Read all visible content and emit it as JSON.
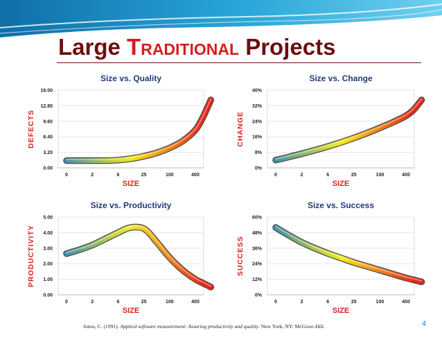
{
  "slide": {
    "title_prefix": "Large ",
    "title_emphasis": "Traditional",
    "title_suffix": " Projects",
    "citation_plain": "Jones, C. (1991). ",
    "citation_italic": "Applied software measurement: Assuring productivity and quality",
    "citation_rest": ". New York, NY: McGraw-Hill.",
    "page_number": "4"
  },
  "colors": {
    "title": "#6b0f0f",
    "title_emphasis": "#d41e1e",
    "chart_title": "#223a7a",
    "axis_label": "#d8231e",
    "curve_start": "#2e86b8",
    "curve_mid": "#f2ea18",
    "curve_end": "#e8261a"
  },
  "chart_data": [
    {
      "type": "line",
      "title": "Size vs. Quality",
      "xlabel": "SIZE",
      "ylabel": "DEFECTS",
      "x_ticks": [
        "0",
        "2",
        "6",
        "25",
        "100",
        "400"
      ],
      "y_ticks": [
        "0.00",
        "3.20",
        "6.40",
        "9.60",
        "12.80",
        "16.00"
      ],
      "ylim": [
        0,
        16
      ],
      "grid": true,
      "x": [
        0,
        0.5,
        1,
        1.5,
        2,
        2.5,
        3,
        3.5,
        4,
        4.5,
        5,
        5.3,
        5.6
      ],
      "y": [
        1.5,
        1.5,
        1.5,
        1.5,
        1.6,
        1.9,
        2.4,
        3.1,
        4.1,
        5.5,
        7.8,
        10.5,
        14.0
      ]
    },
    {
      "type": "line",
      "title": "Size vs. Change",
      "xlabel": "SIZE",
      "ylabel": "CHANGE",
      "x_ticks": [
        "0",
        "2",
        "6",
        "25",
        "100",
        "400"
      ],
      "y_ticks": [
        "0%",
        "8%",
        "16%",
        "24%",
        "32%",
        "40%"
      ],
      "ylim": [
        0,
        40
      ],
      "grid": true,
      "x": [
        0,
        0.5,
        1,
        1.5,
        2,
        2.5,
        3,
        3.5,
        4,
        4.5,
        5,
        5.3,
        5.6
      ],
      "y": [
        4,
        5.6,
        7.3,
        9.1,
        11,
        13.1,
        15.4,
        17.9,
        20.6,
        23.5,
        26.8,
        30,
        35
      ]
    },
    {
      "type": "line",
      "title": "Size vs. Productivity",
      "xlabel": "SIZE",
      "ylabel": "PRODUCTIVITY",
      "x_ticks": [
        "0",
        "2",
        "6",
        "25",
        "100",
        "400"
      ],
      "y_ticks": [
        "0.00",
        "1.00",
        "2.00",
        "3.00",
        "4.00",
        "5.00"
      ],
      "ylim": [
        0,
        5
      ],
      "grid": true,
      "x": [
        0,
        0.5,
        1,
        1.5,
        2,
        2.4,
        2.8,
        3.1,
        3.5,
        4,
        4.5,
        5,
        5.3,
        5.6
      ],
      "y": [
        2.65,
        2.9,
        3.2,
        3.6,
        4.0,
        4.3,
        4.35,
        4.15,
        3.4,
        2.4,
        1.6,
        1.0,
        0.75,
        0.5
      ]
    },
    {
      "type": "line",
      "title": "Size vs. Success",
      "xlabel": "SIZE",
      "ylabel": "SUCCESS",
      "x_ticks": [
        "0",
        "2",
        "6",
        "25",
        "100",
        "400"
      ],
      "y_ticks": [
        "0%",
        "12%",
        "24%",
        "36%",
        "48%",
        "60%"
      ],
      "ylim": [
        0,
        60
      ],
      "grid": true,
      "x": [
        0,
        0.5,
        1,
        1.5,
        2,
        2.5,
        3,
        3.5,
        4,
        4.5,
        5,
        5.3,
        5.6
      ],
      "y": [
        52,
        46,
        40.5,
        36,
        32,
        28.5,
        25,
        22,
        19,
        16,
        13,
        11.5,
        10
      ]
    }
  ]
}
